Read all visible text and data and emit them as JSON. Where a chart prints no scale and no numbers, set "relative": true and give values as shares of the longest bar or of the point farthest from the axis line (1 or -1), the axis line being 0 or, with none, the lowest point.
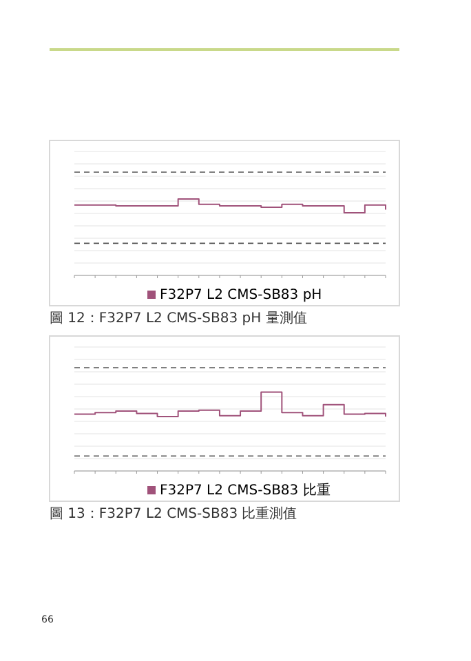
{
  "chart_data": [
    {
      "type": "step",
      "title": "圖 12：F32P7 L2 CMS-SB83 pH 量測值",
      "relative": true,
      "categories": [
        null,
        null,
        null,
        null,
        null,
        null,
        null,
        null,
        null,
        null,
        null,
        null,
        null,
        null,
        null,
        null
      ],
      "series": [
        {
          "name": "F32P7 L2 CMS-SB83 pH",
          "color": "#a0527a",
          "values": [
            0.92,
            0.92,
            0.91,
            0.91,
            0.91,
            1,
            0.93,
            0.91,
            0.91,
            0.89,
            0.93,
            0.91,
            0.91,
            0.82,
            0.92,
            0.86
          ]
        }
      ],
      "ref_lines": [
        {
          "axis": "y",
          "value": 1.35,
          "color": "#555555",
          "line_style": "dashed"
        },
        {
          "axis": "y",
          "value": 0.42,
          "color": "#555555",
          "line_style": "dashed"
        }
      ],
      "grid": "y",
      "legend": "bottom"
    },
    {
      "type": "step",
      "title": "圖 13：F32P7 L2 CMS-SB83 比重測值",
      "relative": true,
      "categories": [
        null,
        null,
        null,
        null,
        null,
        null,
        null,
        null,
        null,
        null,
        null,
        null,
        null,
        null,
        null,
        null
      ],
      "series": [
        {
          "name": "F32P7 L2 CMS-SB83 比重",
          "color": "#a0527a",
          "values": [
            0.72,
            0.74,
            0.76,
            0.73,
            0.69,
            0.76,
            0.77,
            0.7,
            0.76,
            1,
            0.74,
            0.7,
            0.84,
            0.72,
            0.73,
            0.69
          ]
        }
      ],
      "ref_lines": [
        {
          "axis": "y",
          "value": 1.31,
          "color": "#555555",
          "line_style": "dashed"
        },
        {
          "axis": "y",
          "value": 0.19,
          "color": "#555555",
          "line_style": "dashed"
        }
      ],
      "grid": "y",
      "legend": "bottom",
      "annotations": [
        "66"
      ]
    }
  ]
}
